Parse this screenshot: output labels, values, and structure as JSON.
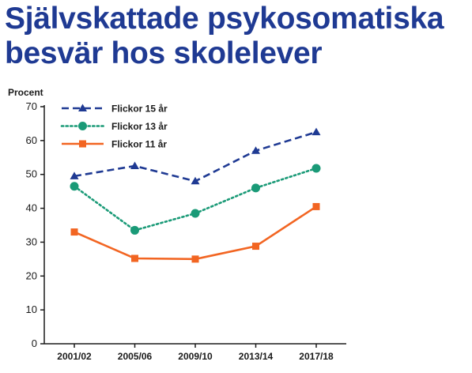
{
  "chart_data": {
    "type": "line",
    "title": [
      "Självskattade psykosomatiska",
      "besvär hos skolelever"
    ],
    "ylabel": "Procent",
    "xlabel": "",
    "categories": [
      "2001/02",
      "2005/06",
      "2009/10",
      "2013/14",
      "2017/18"
    ],
    "ylim": [
      0,
      70
    ],
    "yticks": [
      0,
      10,
      20,
      30,
      40,
      50,
      60,
      70
    ],
    "legend_position": "top-left",
    "grid": false,
    "series": [
      {
        "name": "Flickor 15 år",
        "values": [
          49.5,
          52.5,
          48,
          57,
          62.5
        ],
        "color": "#1f3a93",
        "marker": "triangle",
        "dash": "dashed"
      },
      {
        "name": "Flickor 13 år",
        "values": [
          46.5,
          33.5,
          38.5,
          46,
          51.8
        ],
        "color": "#1a9a77",
        "marker": "circle",
        "dash": "dotted"
      },
      {
        "name": "Flickor 11 år",
        "values": [
          33,
          25.2,
          25,
          28.8,
          40.5
        ],
        "color": "#f26522",
        "marker": "square",
        "dash": "solid"
      }
    ]
  }
}
